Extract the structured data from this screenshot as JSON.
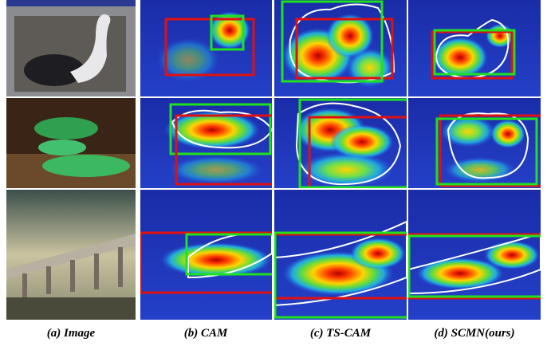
{
  "captions": [
    "(a) Image",
    "(b) CAM",
    "(c) TS-CAM",
    "(d) SCMN(ours)"
  ]
}
